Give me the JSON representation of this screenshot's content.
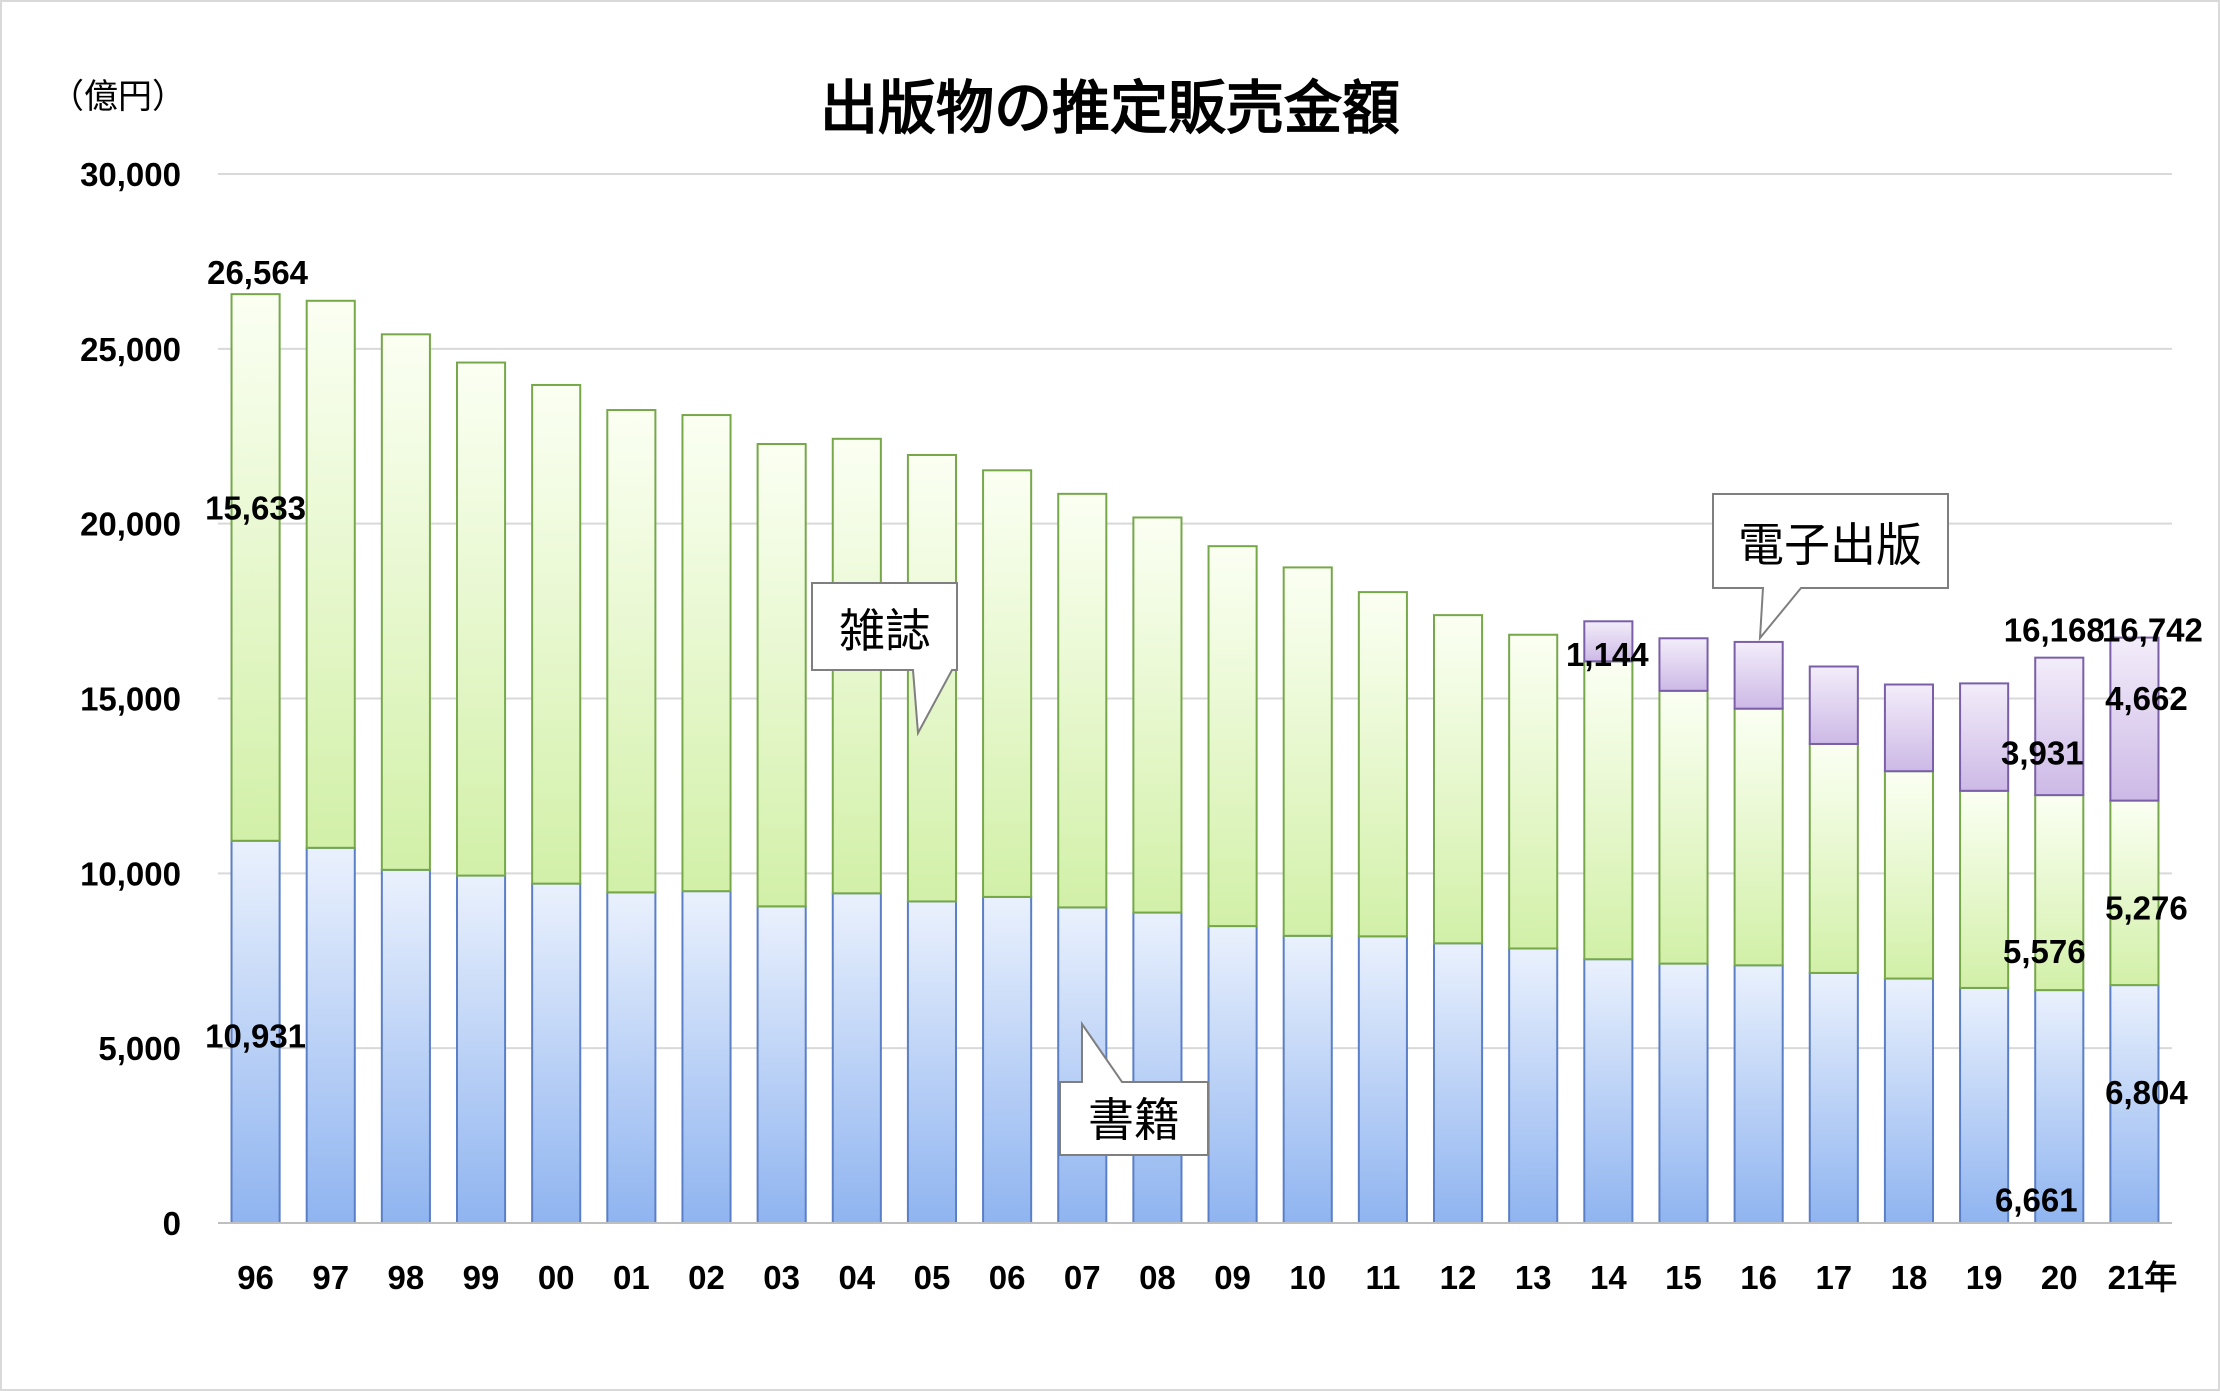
{
  "chart_data": {
    "type": "bar",
    "stacked": true,
    "title": "出版物の推定販売金額",
    "unit_label": "（億円）",
    "x_suffix": "年",
    "categories": [
      "96",
      "97",
      "98",
      "99",
      "00",
      "01",
      "02",
      "03",
      "04",
      "05",
      "06",
      "07",
      "08",
      "09",
      "10",
      "11",
      "12",
      "13",
      "14",
      "15",
      "16",
      "17",
      "18",
      "19",
      "20",
      "21"
    ],
    "series": [
      {
        "name": "書籍",
        "color": "#8fb4f0",
        "values": [
          10931,
          10730,
          10100,
          9936,
          9706,
          9456,
          9490,
          9056,
          9429,
          9197,
          9326,
          9026,
          8878,
          8492,
          8213,
          8199,
          7999,
          7851,
          7544,
          7419,
          7370,
          7152,
          6991,
          6723,
          6661,
          6804
        ]
      },
      {
        "name": "雑誌",
        "color": "#d2f0a8",
        "values": [
          15633,
          15644,
          15315,
          14672,
          14261,
          13794,
          13616,
          13222,
          12998,
          12767,
          12200,
          11827,
          11299,
          10864,
          10536,
          9844,
          9385,
          8972,
          8520,
          7801,
          7339,
          6548,
          5930,
          5637,
          5576,
          5276
        ]
      },
      {
        "name": "電子出版",
        "color": "#cdb9e6",
        "values": [
          0,
          0,
          0,
          0,
          0,
          0,
          0,
          0,
          0,
          0,
          0,
          0,
          0,
          0,
          0,
          0,
          0,
          0,
          1144,
          1502,
          1909,
          2215,
          2479,
          3072,
          3931,
          4662
        ]
      }
    ],
    "ylim": [
      0,
      30000
    ],
    "yticks": [
      "0",
      "5,000",
      "10,000",
      "15,000",
      "20,000",
      "25,000",
      "30,000"
    ],
    "grid": true,
    "data_labels": [
      {
        "category": "96",
        "text": "26,564"
      },
      {
        "category": "96",
        "text": "15,633"
      },
      {
        "category": "96",
        "text": "10,931"
      },
      {
        "category": "14",
        "text": "1,144"
      },
      {
        "category": "20",
        "text": "16,168"
      },
      {
        "category": "20",
        "text": "3,931"
      },
      {
        "category": "20",
        "text": "5,576"
      },
      {
        "category": "20",
        "text": "6,661"
      },
      {
        "category": "21",
        "text": "16,742"
      },
      {
        "category": "21",
        "text": "4,662"
      },
      {
        "category": "21",
        "text": "5,276"
      },
      {
        "category": "21",
        "text": "6,804"
      }
    ],
    "callouts": [
      {
        "text": "雑誌",
        "series": "雑誌"
      },
      {
        "text": "書籍",
        "series": "書籍"
      },
      {
        "text": "電子出版",
        "series": "電子出版"
      }
    ]
  }
}
